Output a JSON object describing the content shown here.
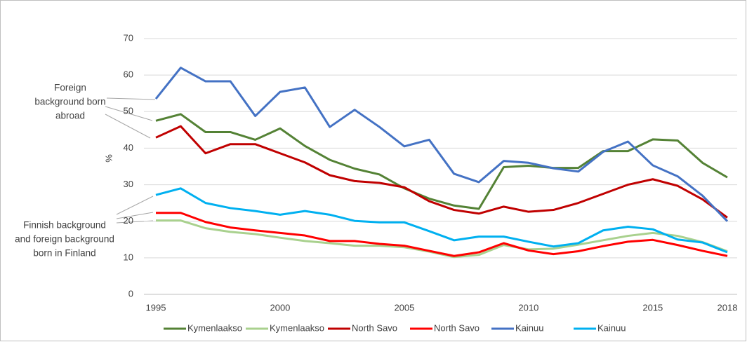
{
  "chart_data": {
    "type": "line",
    "y_label": "%",
    "x": [
      1995,
      1996,
      1997,
      1998,
      1999,
      2000,
      2001,
      2002,
      2003,
      2004,
      2005,
      2006,
      2007,
      2008,
      2009,
      2010,
      2011,
      2012,
      2013,
      2014,
      2015,
      2016,
      2017,
      2018
    ],
    "xlim": [
      1995,
      2018
    ],
    "xticks": [
      1995,
      2000,
      2005,
      2010,
      2015,
      2018
    ],
    "ylim": [
      0,
      70
    ],
    "yticks": [
      0,
      10,
      20,
      30,
      40,
      50,
      60,
      70
    ],
    "grid": true,
    "legend": "bottom",
    "annotations": [
      {
        "lines": [
          "Foreign",
          "background born",
          "abroad"
        ]
      },
      {
        "lines": [
          "Finnish background",
          "and foreign background",
          "born in Finland"
        ]
      }
    ],
    "series": [
      {
        "name": "Kymenlaakso",
        "color": "#548235",
        "values": [
          47.5,
          49.3,
          44.4,
          44.4,
          42.3,
          45.4,
          40.6,
          36.8,
          34.4,
          32.8,
          29,
          26.2,
          24.3,
          23.4,
          34.8,
          35.2,
          34.6,
          34.6,
          39.2,
          39.2,
          42.4,
          42.1,
          36,
          32
        ]
      },
      {
        "name": "Kymenlaakso",
        "color": "#a9d18e",
        "values": [
          20.2,
          20.2,
          18.1,
          17.1,
          16.5,
          15.5,
          14.6,
          14,
          13.3,
          13.3,
          12.9,
          11.7,
          10.2,
          10.8,
          13.5,
          12.3,
          12.5,
          13.6,
          14.8,
          16,
          16.8,
          16,
          14.3,
          11.8
        ]
      },
      {
        "name": "North Savo",
        "color": "#c00000",
        "values": [
          42.9,
          46,
          38.6,
          41.1,
          41.1,
          38.6,
          36.1,
          32.6,
          31,
          30.5,
          29.3,
          25.5,
          23.1,
          22.1,
          24,
          22.6,
          23.1,
          25,
          27.5,
          30,
          31.5,
          29.7,
          26,
          21
        ]
      },
      {
        "name": "North Savo",
        "color": "#ff0000",
        "values": [
          22.3,
          22.3,
          19.8,
          18.3,
          17.5,
          16.8,
          16.1,
          14.6,
          14.6,
          13.8,
          13.3,
          11.9,
          10.5,
          11.5,
          14,
          12,
          11,
          11.8,
          13.2,
          14.4,
          14.9,
          13.5,
          11.9,
          10.5
        ]
      },
      {
        "name": "Kainuu",
        "color": "#4472c4",
        "values": [
          53.5,
          62,
          58.3,
          58.3,
          48.8,
          55.4,
          56.6,
          45.8,
          50.5,
          45.8,
          40.5,
          42.3,
          33,
          30.7,
          36.5,
          36,
          34.5,
          33.6,
          39,
          41.8,
          35.3,
          32.3,
          27,
          20
        ]
      },
      {
        "name": "Kainuu",
        "color": "#00b0f0",
        "values": [
          27.2,
          29,
          25,
          23.6,
          22.8,
          21.8,
          22.8,
          21.8,
          20.1,
          19.7,
          19.7,
          17.3,
          14.8,
          15.8,
          15.8,
          14.4,
          13.1,
          14,
          17.5,
          18.5,
          17.8,
          15,
          14.2,
          11.5
        ]
      }
    ]
  }
}
